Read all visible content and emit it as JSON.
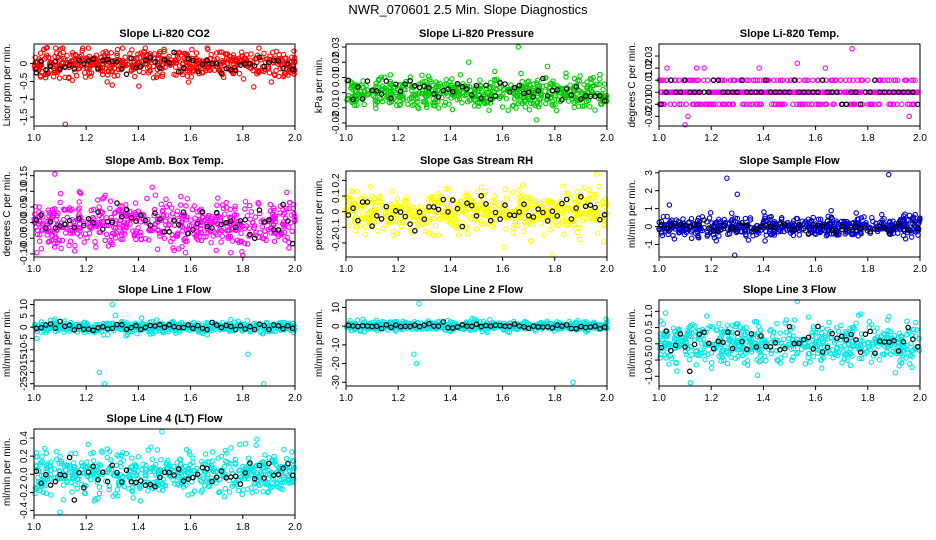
{
  "suptitle": "NWR_070601  2.5 Min. Slope Diagnostics",
  "chart_data": [
    {
      "type": "scatter",
      "title": "Slope Li-820 CO2",
      "ylabel": "Licor ppm per min.",
      "color": "#ff0000",
      "xlim": [
        1.0,
        2.0
      ],
      "ylim": [
        -1.75,
        0.55
      ],
      "yticks": [
        -1.5,
        -1.0,
        -0.5,
        0.0
      ],
      "ytick_labels": [
        "-1.5",
        "-1",
        "-0.5",
        "0"
      ],
      "xticks": [
        1.0,
        1.2,
        1.4,
        1.6,
        1.8,
        2.0
      ],
      "xtick_labels": [
        "1.0",
        "1.2",
        "1.4",
        "1.6",
        "1.8",
        "2.0"
      ],
      "center": 0.0,
      "spread": 0.22,
      "outliers": [
        [
          1.12,
          -1.7
        ],
        [
          1.3,
          -0.6
        ],
        [
          1.05,
          0.45
        ]
      ]
    },
    {
      "type": "scatter",
      "title": "Slope Li-820 Pressure",
      "ylabel": "kPa per min.",
      "color": "#00cc00",
      "xlim": [
        1.0,
        2.0
      ],
      "ylim": [
        -0.022,
        0.032
      ],
      "yticks": [
        -0.02,
        -0.01,
        0.0,
        0.01,
        0.02,
        0.03
      ],
      "ytick_labels": [
        "-0.02",
        "-0.01",
        "0",
        "0.01",
        "0.02",
        "0.03"
      ],
      "xticks": [
        1.0,
        1.2,
        1.4,
        1.6,
        1.8,
        2.0
      ],
      "xtick_labels": [
        "1.0",
        "1.2",
        "1.4",
        "1.6",
        "1.8",
        "2.0"
      ],
      "center": 0.0,
      "spread": 0.006,
      "outliers": [
        [
          1.66,
          0.03
        ],
        [
          1.47,
          0.02
        ],
        [
          1.73,
          -0.018
        ]
      ]
    },
    {
      "type": "scatter",
      "title": "Slope Li-820 Temp.",
      "ylabel": "degrees C per min.",
      "color": "#ff00ff",
      "xlim": [
        1.0,
        2.0
      ],
      "ylim": [
        -0.028,
        0.04
      ],
      "yticks": [
        -0.02,
        -0.01,
        0.0,
        0.01,
        0.02,
        0.03
      ],
      "ytick_labels": [
        "-0.02",
        "-0.01",
        "0",
        "0.01",
        "0.02",
        "0.03"
      ],
      "xticks": [
        1.0,
        1.2,
        1.4,
        1.6,
        1.8,
        2.0
      ],
      "xtick_labels": [
        "1.0",
        "1.2",
        "1.4",
        "1.6",
        "1.8",
        "2.0"
      ],
      "center": 0.0,
      "spread": 0.007,
      "quantized": 0.01,
      "outliers": [
        [
          1.74,
          0.036
        ],
        [
          1.53,
          0.024
        ],
        [
          1.1,
          -0.027
        ]
      ]
    },
    {
      "type": "scatter",
      "title": "Slope Amb. Box Temp.",
      "ylabel": "degrees C per min.",
      "color": "#ff00ff",
      "xlim": [
        1.0,
        2.0
      ],
      "ylim": [
        -0.11,
        0.165
      ],
      "yticks": [
        -0.1,
        -0.05,
        0.0,
        0.05,
        0.1,
        0.15
      ],
      "ytick_labels": [
        "-0.10",
        "-0.05",
        "0.00",
        "0.05",
        "0.10",
        "0.15"
      ],
      "xticks": [
        1.0,
        1.2,
        1.4,
        1.6,
        1.8,
        2.0
      ],
      "xtick_labels": [
        "1.0",
        "1.2",
        "1.4",
        "1.6",
        "1.8",
        "2.0"
      ],
      "center": 0.0,
      "spread": 0.045,
      "outliers": [
        [
          1.08,
          0.155
        ],
        [
          1.8,
          -0.105
        ]
      ]
    },
    {
      "type": "scatter",
      "title": "Slope Gas Stream RH",
      "ylabel": "percent per min.",
      "color": "#ffff00",
      "xlim": [
        1.0,
        2.0
      ],
      "ylim": [
        -0.29,
        0.26
      ],
      "yticks": [
        -0.2,
        -0.1,
        0.0,
        0.1,
        0.2
      ],
      "ytick_labels": [
        "-0.2",
        "-0.1",
        "0",
        "0.1",
        "0.2"
      ],
      "xticks": [
        1.0,
        1.2,
        1.4,
        1.6,
        1.8,
        2.0
      ],
      "xtick_labels": [
        "1.0",
        "1.2",
        "1.4",
        "1.6",
        "1.8",
        "2.0"
      ],
      "center": 0.0,
      "spread": 0.08,
      "outliers": [
        [
          1.79,
          -0.28
        ],
        [
          1.96,
          0.24
        ]
      ]
    },
    {
      "type": "scatter",
      "title": "Slope Sample Flow",
      "ylabel": "ml/min per min.",
      "color": "#0000cc",
      "xlim": [
        1.0,
        2.0
      ],
      "ylim": [
        -1.7,
        3.1
      ],
      "yticks": [
        -1,
        0,
        1,
        2,
        3
      ],
      "ytick_labels": [
        "-1",
        "0",
        "1",
        "2",
        "3"
      ],
      "xticks": [
        1.0,
        1.2,
        1.4,
        1.6,
        1.8,
        2.0
      ],
      "xtick_labels": [
        "1.0",
        "1.2",
        "1.4",
        "1.6",
        "1.8",
        "2.0"
      ],
      "center": 0.0,
      "spread": 0.35,
      "outliers": [
        [
          1.26,
          2.7
        ],
        [
          1.88,
          2.9
        ],
        [
          1.3,
          1.8
        ],
        [
          1.04,
          1.2
        ],
        [
          1.29,
          -1.6
        ]
      ]
    },
    {
      "type": "scatter",
      "title": "Slope Line 1 Flow",
      "ylabel": "ml/min per min.",
      "color": "#00e5e5",
      "xlim": [
        1.0,
        2.0
      ],
      "ylim": [
        -26,
        12
      ],
      "yticks": [
        -25,
        -20,
        -15,
        -10,
        -5,
        0,
        5,
        10
      ],
      "ytick_labels": [
        "-25",
        "-20",
        "-15",
        "-10",
        "-5",
        "0",
        "5",
        "10"
      ],
      "xticks": [
        1.0,
        1.2,
        1.4,
        1.6,
        1.8,
        2.0
      ],
      "xtick_labels": [
        "1.0",
        "1.2",
        "1.4",
        "1.6",
        "1.8",
        "2.0"
      ],
      "center": 0.0,
      "spread": 1.5,
      "outliers": [
        [
          1.27,
          -25
        ],
        [
          1.25,
          -20
        ],
        [
          1.88,
          -25
        ],
        [
          1.82,
          -12
        ],
        [
          1.3,
          10
        ]
      ]
    },
    {
      "type": "scatter",
      "title": "Slope Line 2 Flow",
      "ylabel": "ml/min per min.",
      "color": "#00e5e5",
      "xlim": [
        1.0,
        2.0
      ],
      "ylim": [
        -32,
        14
      ],
      "yticks": [
        -30,
        -20,
        -10,
        0,
        10
      ],
      "ytick_labels": [
        "-30",
        "-20",
        "-10",
        "0",
        "10"
      ],
      "xticks": [
        1.0,
        1.2,
        1.4,
        1.6,
        1.8,
        2.0
      ],
      "xtick_labels": [
        "1.0",
        "1.2",
        "1.4",
        "1.6",
        "1.8",
        "2.0"
      ],
      "center": 0.0,
      "spread": 1.5,
      "outliers": [
        [
          1.27,
          -20
        ],
        [
          1.26,
          -15
        ],
        [
          1.87,
          -30
        ],
        [
          1.28,
          12
        ]
      ]
    },
    {
      "type": "scatter",
      "title": "Slope Line 3 Flow",
      "ylabel": "ml/min per min.",
      "color": "#00e5e5",
      "xlim": [
        1.0,
        2.0
      ],
      "ylim": [
        -1.3,
        1.35
      ],
      "yticks": [
        -1.0,
        -0.5,
        0.0,
        0.5,
        1.0
      ],
      "ytick_labels": [
        "-1.0",
        "-0.5",
        "0.0",
        "0.5",
        "1.0"
      ],
      "xticks": [
        1.0,
        1.2,
        1.4,
        1.6,
        1.8,
        2.0
      ],
      "xtick_labels": [
        "1.0",
        "1.2",
        "1.4",
        "1.6",
        "1.8",
        "2.0"
      ],
      "center": 0.0,
      "spread": 0.4,
      "outliers": [
        [
          1.12,
          -1.2
        ],
        [
          1.53,
          1.3
        ]
      ]
    },
    {
      "type": "scatter",
      "title": "Slope Line 4 (LT) Flow",
      "ylabel": "ml/min per min.",
      "color": "#00e5e5",
      "xlim": [
        1.0,
        2.0
      ],
      "ylim": [
        -0.45,
        0.5
      ],
      "yticks": [
        -0.4,
        -0.2,
        0.0,
        0.2,
        0.4
      ],
      "ytick_labels": [
        "-0.4",
        "-0.2",
        "0.0",
        "0.2",
        "0.4"
      ],
      "xticks": [
        1.0,
        1.2,
        1.4,
        1.6,
        1.8,
        2.0
      ],
      "xtick_labels": [
        "1.0",
        "1.2",
        "1.4",
        "1.6",
        "1.8",
        "2.0"
      ],
      "center": 0.0,
      "spread": 0.14,
      "outliers": [
        [
          1.49,
          0.47
        ],
        [
          1.1,
          -0.42
        ]
      ]
    }
  ]
}
